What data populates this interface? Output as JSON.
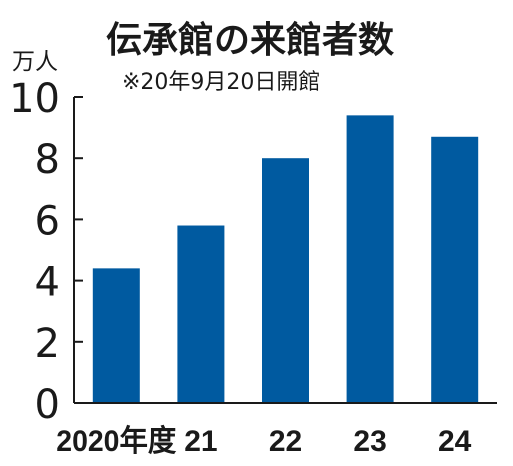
{
  "chart_data": {
    "type": "bar",
    "title": "伝承館の来館者数",
    "subtitle": "※20年9月20日開館",
    "ylabel": "万人",
    "xlabel": "",
    "categories": [
      "2020年度",
      "21",
      "22",
      "23",
      "24"
    ],
    "values": [
      4.4,
      5.8,
      8.0,
      9.4,
      8.7
    ],
    "yticks": [
      "0",
      "2",
      "4",
      "6",
      "8",
      "10"
    ],
    "ylim": [
      0,
      10
    ],
    "grid": false,
    "bar_color": "#005aa0"
  }
}
